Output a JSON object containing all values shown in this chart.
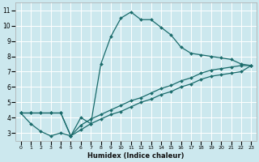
{
  "xlabel": "Humidex (Indice chaleur)",
  "bg_color": "#cce8ee",
  "grid_color": "#ffffff",
  "line_color": "#1a6b6b",
  "xlim": [
    -0.5,
    23.5
  ],
  "ylim": [
    2.5,
    11.5
  ],
  "xticks": [
    0,
    1,
    2,
    3,
    4,
    5,
    6,
    7,
    8,
    9,
    10,
    11,
    12,
    13,
    14,
    15,
    16,
    17,
    18,
    19,
    20,
    21,
    22,
    23
  ],
  "yticks": [
    3,
    4,
    5,
    6,
    7,
    8,
    9,
    10,
    11
  ],
  "curve1_x": [
    0,
    1,
    2,
    3,
    4,
    5,
    6,
    7,
    8,
    9,
    10,
    11,
    12,
    13,
    14,
    15,
    16,
    17,
    18,
    19,
    20,
    21,
    22,
    23
  ],
  "curve1_y": [
    4.3,
    3.6,
    3.1,
    2.8,
    3.0,
    2.8,
    4.0,
    3.6,
    7.5,
    9.3,
    10.5,
    10.9,
    10.4,
    10.4,
    9.9,
    9.4,
    8.6,
    8.2,
    8.1,
    8.0,
    7.9,
    7.8,
    7.5,
    7.4
  ],
  "curve2_x": [
    0,
    5,
    23
  ],
  "curve2_y": [
    4.3,
    2.8,
    7.4
  ],
  "curve3_x": [
    0,
    5,
    23
  ],
  "curve3_y": [
    4.3,
    2.8,
    7.4
  ],
  "curve2_full_x": [
    0,
    1,
    2,
    3,
    4,
    5,
    6,
    7,
    8,
    9,
    10,
    11,
    12,
    13,
    14,
    15,
    16,
    17,
    18,
    19,
    20,
    21,
    22,
    23
  ],
  "curve2_full_y": [
    4.3,
    4.3,
    4.3,
    4.3,
    4.3,
    2.8,
    3.5,
    3.9,
    4.2,
    4.5,
    4.8,
    5.1,
    5.3,
    5.6,
    5.9,
    6.1,
    6.4,
    6.6,
    6.9,
    7.1,
    7.2,
    7.3,
    7.4,
    7.4
  ],
  "curve3_full_x": [
    0,
    1,
    2,
    3,
    4,
    5,
    6,
    7,
    8,
    9,
    10,
    11,
    12,
    13,
    14,
    15,
    16,
    17,
    18,
    19,
    20,
    21,
    22,
    23
  ],
  "curve3_full_y": [
    4.3,
    4.3,
    4.3,
    4.3,
    4.3,
    2.8,
    3.2,
    3.6,
    3.9,
    4.2,
    4.4,
    4.7,
    5.0,
    5.2,
    5.5,
    5.7,
    6.0,
    6.2,
    6.5,
    6.7,
    6.8,
    6.9,
    7.0,
    7.4
  ]
}
